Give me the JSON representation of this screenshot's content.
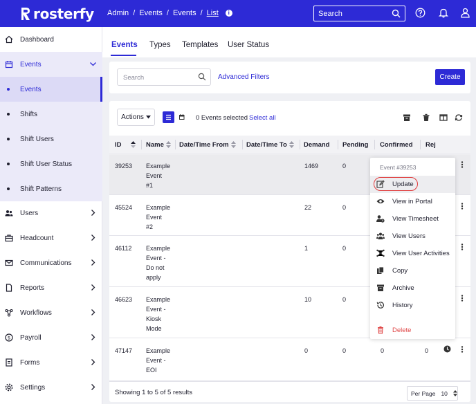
{
  "brand": {
    "name": "rosterfy"
  },
  "breadcrumb": [
    "Admin",
    "Events",
    "Events",
    "List"
  ],
  "search": {
    "placeholder": "Search"
  },
  "sidebar": {
    "items": [
      {
        "label": "Dashboard",
        "icon": "home-icon"
      },
      {
        "label": "Events",
        "icon": "calendar-icon"
      },
      {
        "label": "Events",
        "sub": true
      },
      {
        "label": "Shifts",
        "sub": true
      },
      {
        "label": "Shift Users",
        "sub": true
      },
      {
        "label": "Shift User Status",
        "sub": true
      },
      {
        "label": "Shift Patterns",
        "sub": true
      },
      {
        "label": "Users",
        "icon": "users-icon"
      },
      {
        "label": "Headcount",
        "icon": "briefcase-icon"
      },
      {
        "label": "Communications",
        "icon": "envelope-icon"
      },
      {
        "label": "Reports",
        "icon": "document-icon"
      },
      {
        "label": "Workflows",
        "icon": "workflow-icon"
      },
      {
        "label": "Payroll",
        "icon": "dollar-icon"
      },
      {
        "label": "Forms",
        "icon": "form-icon"
      },
      {
        "label": "Settings",
        "icon": "gear-icon"
      }
    ]
  },
  "tabs": [
    "Events",
    "Types",
    "Templates",
    "User Status"
  ],
  "filters": {
    "search_placeholder": "Search",
    "advanced": "Advanced Filters",
    "create": "Create"
  },
  "toolbar": {
    "actions": "Actions",
    "selected": "0 Events selected",
    "select_all": "Select all"
  },
  "columns": [
    "ID",
    "Name",
    "Date/Time From",
    "Date/Time To",
    "Demand",
    "Pending",
    "Confirmed",
    "Rej"
  ],
  "rows": [
    {
      "id": "39253",
      "name": [
        "Example",
        "Event",
        "#1"
      ],
      "demand": "1469",
      "pending": "0",
      "confirmed": "",
      "rej": ""
    },
    {
      "id": "45524",
      "name": [
        "Example",
        "Event",
        "#2"
      ],
      "demand": "22",
      "pending": "0",
      "confirmed": "",
      "rej": ""
    },
    {
      "id": "46112",
      "name": [
        "Example",
        "Event -",
        "Do not",
        "apply"
      ],
      "demand": "1",
      "pending": "0",
      "confirmed": "",
      "rej": ""
    },
    {
      "id": "46623",
      "name": [
        "Example",
        "Event -",
        "Kiosk",
        "Mode"
      ],
      "demand": "10",
      "pending": "0",
      "confirmed": "",
      "rej": ""
    },
    {
      "id": "47147",
      "name": [
        "Example",
        "Event -",
        "EOI"
      ],
      "demand": "0",
      "pending": "0",
      "confirmed": "0",
      "rej": "0"
    }
  ],
  "footer": {
    "text": "Showing 1 to 5 of 5 results",
    "per_page_label": "Per Page",
    "per_page": "10"
  },
  "context_menu": {
    "title": "Event #39253",
    "items": [
      {
        "label": "Update",
        "icon": "edit-icon"
      },
      {
        "label": "View in Portal",
        "icon": "eye-icon"
      },
      {
        "label": "View Timesheet",
        "icon": "user-clock-icon"
      },
      {
        "label": "View Users",
        "icon": "users-icon"
      },
      {
        "label": "View User Activities",
        "icon": "network-icon"
      },
      {
        "label": "Copy",
        "icon": "copy-icon"
      },
      {
        "label": "Archive",
        "icon": "archive-icon"
      },
      {
        "label": "History",
        "icon": "history-icon"
      },
      {
        "label": "Delete",
        "icon": "trash-icon"
      }
    ]
  }
}
